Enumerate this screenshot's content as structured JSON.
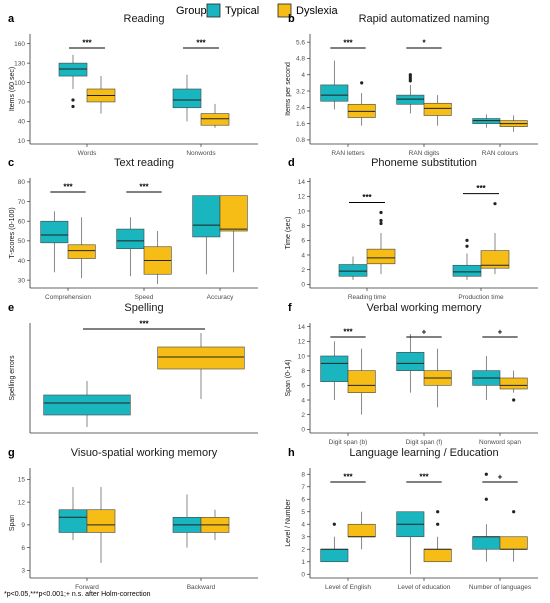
{
  "legend": {
    "title": "Group",
    "items": [
      {
        "label": "Typical",
        "color": "#1ab6bf"
      },
      {
        "label": "Dyslexia",
        "color": "#f5bd16"
      }
    ]
  },
  "footnote": "*p<0.05,***p<0.001;+ n.s. after Holm-correction",
  "chart_data": [
    {
      "panel": "a",
      "type": "box",
      "title": "Reading",
      "ylabel": "Items (60 sec)",
      "yticks": [
        10,
        40,
        70,
        100,
        130,
        160
      ],
      "ylim": [
        5,
        175
      ],
      "categories": [
        "Words",
        "Nonwords"
      ],
      "series": [
        {
          "name": "Typical",
          "boxes": [
            {
              "min": 90,
              "q1": 110,
              "median": 121,
              "q3": 130,
              "max": 143,
              "outliers": [
                73,
                63
              ]
            },
            {
              "min": 40,
              "q1": 61,
              "median": 73,
              "q3": 90,
              "max": 112,
              "outliers": []
            }
          ]
        },
        {
          "name": "Dyslexia",
          "boxes": [
            {
              "min": 52,
              "q1": 70,
              "median": 80,
              "q3": 90,
              "max": 110,
              "outliers": []
            },
            {
              "min": 30,
              "q1": 34,
              "median": 44,
              "q3": 52,
              "max": 67,
              "outliers": []
            }
          ]
        }
      ],
      "significance": [
        {
          "pair": 0,
          "label": "***"
        },
        {
          "pair": 1,
          "label": "***"
        }
      ]
    },
    {
      "panel": "b",
      "type": "box",
      "title": "Rapid automatized naming",
      "ylabel": "Items per second",
      "yticks": [
        0.8,
        1.6,
        2.4,
        3.2,
        4.0,
        4.8,
        5.6
      ],
      "ylim": [
        0.6,
        6.0
      ],
      "categories": [
        "RAN letters",
        "RAN digits",
        "RAN colours"
      ],
      "series": [
        {
          "name": "Typical",
          "boxes": [
            {
              "min": 2.3,
              "q1": 2.7,
              "median": 3.0,
              "q3": 3.5,
              "max": 4.7,
              "outliers": []
            },
            {
              "min": 2.1,
              "q1": 2.55,
              "median": 2.8,
              "q3": 3.0,
              "max": 3.5,
              "outliers": [
                3.7,
                3.8,
                3.9,
                4.0
              ]
            },
            {
              "min": 1.4,
              "q1": 1.6,
              "median": 1.75,
              "q3": 1.85,
              "max": 2.05,
              "outliers": []
            }
          ]
        },
        {
          "name": "Dyslexia",
          "boxes": [
            {
              "min": 1.5,
              "q1": 1.9,
              "median": 2.2,
              "q3": 2.55,
              "max": 3.1,
              "outliers": [
                3.6
              ]
            },
            {
              "min": 1.5,
              "q1": 2.0,
              "median": 2.35,
              "q3": 2.6,
              "max": 3.0,
              "outliers": []
            },
            {
              "min": 1.2,
              "q1": 1.45,
              "median": 1.6,
              "q3": 1.75,
              "max": 2.0,
              "outliers": []
            }
          ]
        }
      ],
      "significance": [
        {
          "pair": 0,
          "label": "***"
        },
        {
          "pair": 1,
          "label": "*"
        }
      ]
    },
    {
      "panel": "c",
      "type": "box",
      "title": "Text reading",
      "ylabel": "T-scores (0-100)",
      "yticks": [
        30,
        40,
        50,
        60,
        70,
        80
      ],
      "ylim": [
        26,
        82
      ],
      "categories": [
        "Comprehension",
        "Speed",
        "Accuracy"
      ],
      "series": [
        {
          "name": "Typical",
          "boxes": [
            {
              "min": 34,
              "q1": 49,
              "median": 53,
              "q3": 60,
              "max": 65,
              "outliers": []
            },
            {
              "min": 32,
              "q1": 46,
              "median": 50,
              "q3": 56,
              "max": 62,
              "outliers": []
            },
            {
              "min": 33,
              "q1": 52,
              "median": 58,
              "q3": 73,
              "max": 73,
              "outliers": []
            }
          ]
        },
        {
          "name": "Dyslexia",
          "boxes": [
            {
              "min": 31,
              "q1": 41,
              "median": 45,
              "q3": 48,
              "max": 62,
              "outliers": []
            },
            {
              "min": 28,
              "q1": 33,
              "median": 40,
              "q3": 47,
              "max": 55,
              "outliers": []
            },
            {
              "min": 34,
              "q1": 55,
              "median": 56,
              "q3": 73,
              "max": 73,
              "outliers": []
            }
          ]
        }
      ],
      "significance": [
        {
          "pair": 0,
          "label": "***"
        },
        {
          "pair": 1,
          "label": "***"
        }
      ]
    },
    {
      "panel": "d",
      "type": "box",
      "title": "Phoneme substitution",
      "ylabel": "Time (sec)",
      "yticks": [
        0,
        2,
        4,
        6,
        8,
        10,
        12,
        14
      ],
      "ylim": [
        -0.5,
        14.5
      ],
      "categories": [
        "Reading time",
        "Production time"
      ],
      "series": [
        {
          "name": "Typical",
          "boxes": [
            {
              "min": 0.6,
              "q1": 1.1,
              "median": 1.8,
              "q3": 2.7,
              "max": 3.8,
              "outliers": []
            },
            {
              "min": 0.6,
              "q1": 1.1,
              "median": 1.7,
              "q3": 2.6,
              "max": 4.2,
              "outliers": [
                5.2,
                6.0
              ]
            }
          ]
        },
        {
          "name": "Dyslexia",
          "boxes": [
            {
              "min": 1.4,
              "q1": 2.8,
              "median": 3.6,
              "q3": 4.8,
              "max": 7.0,
              "outliers": [
                8.3,
                8.7,
                9.8
              ]
            },
            {
              "min": 1.4,
              "q1": 2.2,
              "median": 2.6,
              "q3": 4.6,
              "max": 7.0,
              "outliers": [
                11.0
              ]
            }
          ]
        }
      ],
      "significance": [
        {
          "pair": 0,
          "label": "***"
        },
        {
          "pair": 1,
          "label": "***"
        }
      ]
    },
    {
      "panel": "e",
      "type": "box",
      "title": "Spelling",
      "ylabel": "Spelling errors",
      "yticks": [],
      "ylim": [
        0,
        55
      ],
      "categories": [
        ""
      ],
      "series": [
        {
          "name": "Typical",
          "boxes": [
            {
              "min": 3,
              "q1": 9,
              "median": 15,
              "q3": 19,
              "max": 26,
              "outliers": []
            }
          ]
        },
        {
          "name": "Dyslexia",
          "boxes": [
            {
              "min": 17,
              "q1": 32,
              "median": 38,
              "q3": 43,
              "max": 50,
              "outliers": []
            }
          ]
        }
      ],
      "significance": [
        {
          "pair": "between",
          "label": "***"
        }
      ]
    },
    {
      "panel": "f",
      "type": "box",
      "title": "Verbal working memory",
      "ylabel": "Span (0-14)",
      "yticks": [
        0,
        2,
        4,
        6,
        8,
        10,
        12,
        14
      ],
      "ylim": [
        -0.5,
        14.5
      ],
      "categories": [
        "Digit span (b)",
        "Digit span (f)",
        "Nonword span"
      ],
      "series": [
        {
          "name": "Typical",
          "boxes": [
            {
              "min": 4,
              "q1": 6.5,
              "median": 9,
              "q3": 10,
              "max": 12,
              "outliers": []
            },
            {
              "min": 5,
              "q1": 8,
              "median": 9,
              "q3": 10.5,
              "max": 13,
              "outliers": []
            },
            {
              "min": 4,
              "q1": 6,
              "median": 7,
              "q3": 8,
              "max": 10,
              "outliers": []
            }
          ]
        },
        {
          "name": "Dyslexia",
          "boxes": [
            {
              "min": 2,
              "q1": 5,
              "median": 6,
              "q3": 8,
              "max": 11,
              "outliers": []
            },
            {
              "min": 3,
              "q1": 6,
              "median": 7,
              "q3": 8,
              "max": 11,
              "outliers": []
            },
            {
              "min": 5,
              "q1": 5.5,
              "median": 6,
              "q3": 7,
              "max": 8,
              "outliers": [
                4
              ]
            }
          ]
        }
      ],
      "significance": [
        {
          "pair": 0,
          "label": "***"
        },
        {
          "pair": 1,
          "label": "+"
        },
        {
          "pair": 2,
          "label": "+"
        }
      ]
    },
    {
      "panel": "g",
      "type": "box",
      "title": "Visuo-spatial working memory",
      "ylabel": "Span",
      "yticks": [
        3,
        6,
        9,
        12,
        15
      ],
      "ylim": [
        2,
        16.5
      ],
      "categories": [
        "Forward",
        "Backward"
      ],
      "series": [
        {
          "name": "Typical",
          "boxes": [
            {
              "min": 7,
              "q1": 8,
              "median": 10,
              "q3": 11,
              "max": 14,
              "outliers": []
            },
            {
              "min": 6,
              "q1": 8,
              "median": 9,
              "q3": 10,
              "max": 13,
              "outliers": []
            }
          ]
        },
        {
          "name": "Dyslexia",
          "boxes": [
            {
              "min": 4,
              "q1": 8,
              "median": 9,
              "q3": 11,
              "max": 14,
              "outliers": []
            },
            {
              "min": 7,
              "q1": 8,
              "median": 9,
              "q3": 10,
              "max": 11,
              "outliers": []
            }
          ]
        }
      ],
      "significance": []
    },
    {
      "panel": "h",
      "type": "box",
      "title": "Language learning / Education",
      "ylabel": "Level / Number",
      "yticks": [
        0,
        1,
        2,
        3,
        4,
        5,
        6,
        7,
        8
      ],
      "ylim": [
        -0.3,
        8.5
      ],
      "categories": [
        "Level of English",
        "Level of education",
        "Number of languages"
      ],
      "series": [
        {
          "name": "Typical",
          "boxes": [
            {
              "min": 1,
              "q1": 1,
              "median": 2,
              "q3": 2,
              "max": 3,
              "outliers": [
                4
              ]
            },
            {
              "min": 0,
              "q1": 3,
              "median": 4,
              "q3": 5,
              "max": 5,
              "outliers": []
            },
            {
              "min": 1,
              "q1": 2,
              "median": 3,
              "q3": 3,
              "max": 4,
              "outliers": [
                6,
                8
              ]
            }
          ]
        },
        {
          "name": "Dyslexia",
          "boxes": [
            {
              "min": 2,
              "q1": 3,
              "median": 3,
              "q3": 4,
              "max": 5,
              "outliers": []
            },
            {
              "min": 1,
              "q1": 1,
              "median": 2,
              "q3": 2,
              "max": 3,
              "outliers": [
                4,
                5
              ]
            },
            {
              "min": 1,
              "q1": 2,
              "median": 2,
              "q3": 3,
              "max": 3,
              "outliers": [
                5
              ]
            }
          ]
        }
      ],
      "significance": [
        {
          "pair": 0,
          "label": "***"
        },
        {
          "pair": 1,
          "label": "***"
        },
        {
          "pair": 2,
          "label": "+"
        }
      ]
    }
  ]
}
